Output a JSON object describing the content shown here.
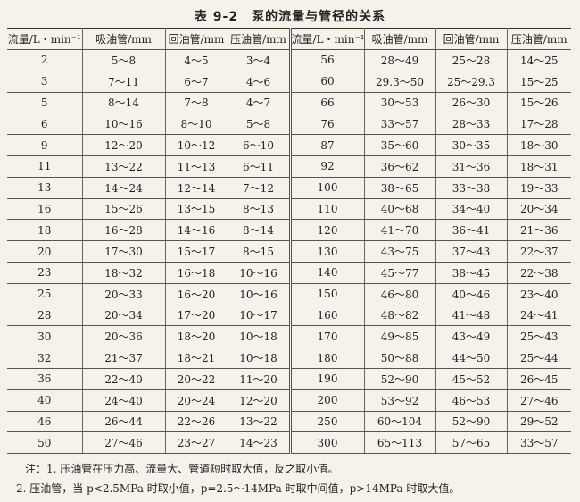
{
  "title": "表 9-2　泵的流量与管径的关系",
  "headers": [
    "流量/L・min⁻¹",
    "吸油管/mm",
    "回油管/mm",
    "压油管/mm"
  ],
  "rows": [
    [
      "2",
      "5～8",
      "4～5",
      "3～4",
      "56",
      "28～49",
      "25～28",
      "14～25"
    ],
    [
      "3",
      "7～11",
      "6～7",
      "4～6",
      "60",
      "29.3～50",
      "25～29.3",
      "15～25"
    ],
    [
      "5",
      "8～14",
      "7～8",
      "4～7",
      "66",
      "30～53",
      "26～30",
      "15～26"
    ],
    [
      "6",
      "10～16",
      "8～10",
      "5～8",
      "76",
      "33～57",
      "28～33",
      "17～28"
    ],
    [
      "9",
      "12～20",
      "10～12",
      "6～10",
      "87",
      "35～60",
      "30～35",
      "18～30"
    ],
    [
      "11",
      "13～22",
      "11～13",
      "6～11",
      "92",
      "36～62",
      "31～36",
      "18～31"
    ],
    [
      "13",
      "14～24",
      "12～14",
      "7～12",
      "100",
      "38～65",
      "33～38",
      "19～33"
    ],
    [
      "16",
      "15～26",
      "13～15",
      "8～13",
      "110",
      "40～68",
      "34～40",
      "20～34"
    ],
    [
      "18",
      "16～28",
      "14～16",
      "8～14",
      "120",
      "41～70",
      "36～41",
      "21～36"
    ],
    [
      "20",
      "17～30",
      "15～17",
      "8～15",
      "130",
      "43～75",
      "37～43",
      "22～37"
    ],
    [
      "23",
      "18～32",
      "16～18",
      "10～16",
      "140",
      "45～77",
      "38～45",
      "22～38"
    ],
    [
      "25",
      "20～33",
      "16～20",
      "10～16",
      "150",
      "46～80",
      "40～46",
      "23～40"
    ],
    [
      "28",
      "20～34",
      "17～20",
      "10～17",
      "160",
      "48～82",
      "41～48",
      "24～41"
    ],
    [
      "30",
      "20～36",
      "18～20",
      "10～18",
      "170",
      "49～85",
      "43～49",
      "25～43"
    ],
    [
      "32",
      "21～37",
      "18～21",
      "10～18",
      "180",
      "50～88",
      "44～50",
      "25～44"
    ],
    [
      "36",
      "22～40",
      "20～22",
      "11～20",
      "190",
      "52～90",
      "45～52",
      "26～45"
    ],
    [
      "40",
      "24～40",
      "20～24",
      "12～20",
      "200",
      "53～92",
      "46～53",
      "27～46"
    ],
    [
      "46",
      "26～44",
      "22～26",
      "13～22",
      "250",
      "60～104",
      "52～90",
      "29～52"
    ],
    [
      "50",
      "27～46",
      "23～27",
      "14～23",
      "300",
      "65～113",
      "57～65",
      "33～57"
    ]
  ],
  "notes": [
    "注：1. 压油管在压力高、流量大、管道短时取大值，反之取小值。",
    "2. 压油管，当 p<2.5MPa 时取小值，p=2.5～14MPa 时取中间值，p>14MPa 时取大值。"
  ]
}
